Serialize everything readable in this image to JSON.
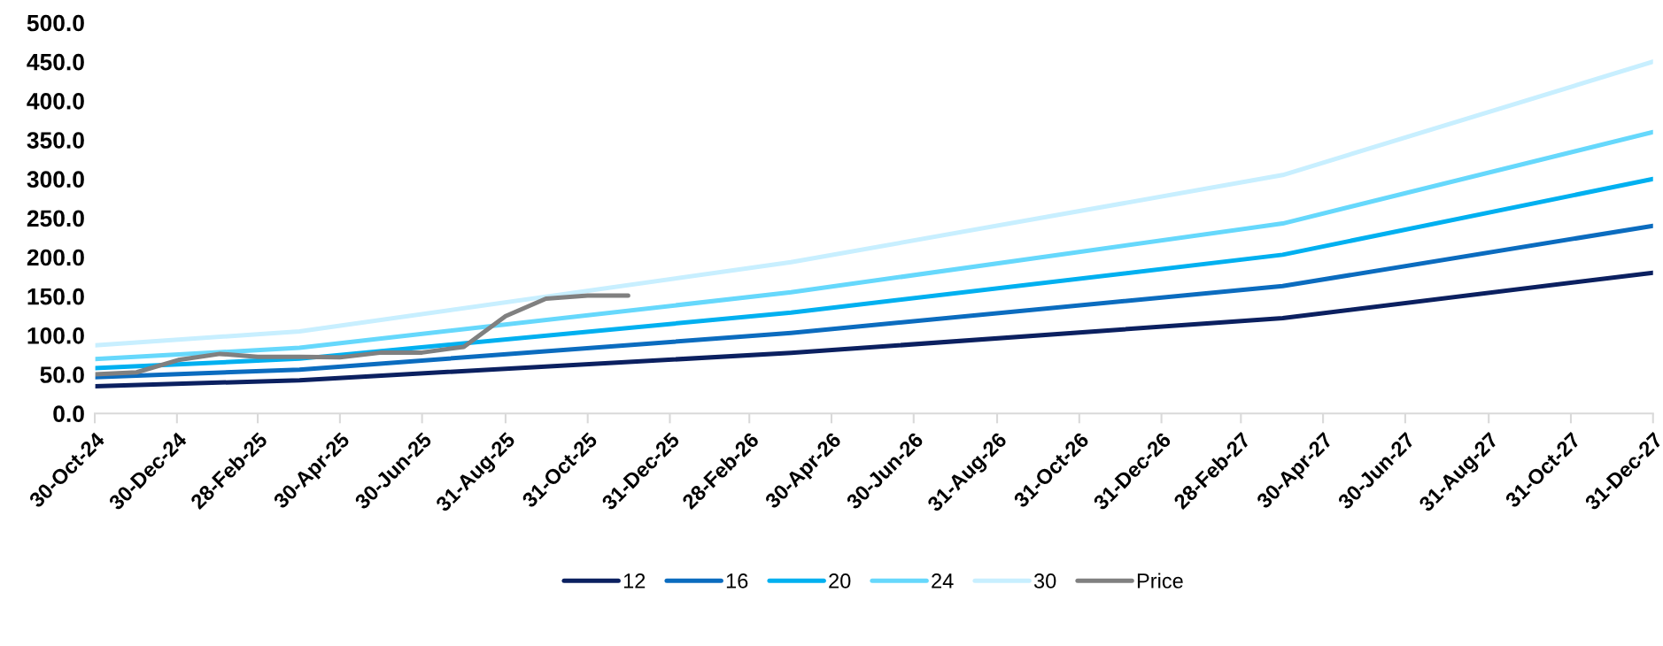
{
  "chart_data": {
    "type": "line",
    "x": [
      "2024-10-30",
      "2025-03-31",
      "2026-03-31",
      "2027-03-31",
      "2027-12-31"
    ],
    "series": [
      {
        "name": "12",
        "color": "#0b2060",
        "values": [
          34.8,
          42.5,
          77.4,
          122,
          180
        ]
      },
      {
        "name": "16",
        "color": "#0b6cbf",
        "values": [
          46.4,
          56,
          103,
          163,
          240
        ]
      },
      {
        "name": "20",
        "color": "#00b0f0",
        "values": [
          58,
          70,
          129,
          203,
          300
        ]
      },
      {
        "name": "24",
        "color": "#66d8fc",
        "values": [
          69.6,
          84,
          155,
          243,
          360
        ]
      },
      {
        "name": "30",
        "color": "#c8efff",
        "values": [
          87,
          105,
          193.5,
          305,
          450
        ]
      },
      {
        "name": "Price",
        "color": "#808080",
        "x": [
          "2024-10-30",
          "2024-11-30",
          "2024-12-31",
          "2025-01-31",
          "2025-02-28",
          "2025-03-31",
          "2025-04-30",
          "2025-05-31",
          "2025-06-30",
          "2025-07-31",
          "2025-08-31",
          "2025-09-30",
          "2025-10-31",
          "2025-11-30"
        ],
        "values": [
          50,
          52.6,
          68.4,
          76.2,
          72.3,
          72.3,
          71.7,
          77.9,
          77.9,
          85.2,
          124.4,
          146.8,
          150.8,
          150.8
        ]
      }
    ],
    "xlim": [
      "2024-10-30",
      "2027-12-31"
    ],
    "xticks": [
      {
        "value": "2024-10-30",
        "label": "30-Oct-24"
      },
      {
        "value": "2024-12-30",
        "label": "30-Dec-24"
      },
      {
        "value": "2025-02-28",
        "label": "28-Feb-25"
      },
      {
        "value": "2025-04-30",
        "label": "30-Apr-25"
      },
      {
        "value": "2025-06-30",
        "label": "30-Jun-25"
      },
      {
        "value": "2025-08-31",
        "label": "31-Aug-25"
      },
      {
        "value": "2025-10-31",
        "label": "31-Oct-25"
      },
      {
        "value": "2025-12-31",
        "label": "31-Dec-25"
      },
      {
        "value": "2026-02-28",
        "label": "28-Feb-26"
      },
      {
        "value": "2026-04-30",
        "label": "30-Apr-26"
      },
      {
        "value": "2026-06-30",
        "label": "30-Jun-26"
      },
      {
        "value": "2026-08-31",
        "label": "31-Aug-26"
      },
      {
        "value": "2026-10-31",
        "label": "31-Oct-26"
      },
      {
        "value": "2026-12-31",
        "label": "31-Dec-26"
      },
      {
        "value": "2027-02-28",
        "label": "28-Feb-27"
      },
      {
        "value": "2027-04-30",
        "label": "30-Apr-27"
      },
      {
        "value": "2027-06-30",
        "label": "30-Jun-27"
      },
      {
        "value": "2027-08-31",
        "label": "31-Aug-27"
      },
      {
        "value": "2027-10-31",
        "label": "31-Oct-27"
      },
      {
        "value": "2027-12-31",
        "label": "31-Dec-27"
      }
    ],
    "ylim": [
      0,
      500
    ],
    "yticks": [
      {
        "value": 0,
        "label": "0.0"
      },
      {
        "value": 50,
        "label": "50.0"
      },
      {
        "value": 100,
        "label": "100.0"
      },
      {
        "value": 150,
        "label": "150.0"
      },
      {
        "value": 200,
        "label": "200.0"
      },
      {
        "value": 250,
        "label": "250.0"
      },
      {
        "value": 300,
        "label": "300.0"
      },
      {
        "value": 350,
        "label": "350.0"
      },
      {
        "value": 400,
        "label": "400.0"
      },
      {
        "value": 450,
        "label": "450.0"
      },
      {
        "value": 500,
        "label": "500.0"
      }
    ],
    "grid": false,
    "legend": "bottom",
    "marker": "none",
    "line_style": "solid"
  }
}
